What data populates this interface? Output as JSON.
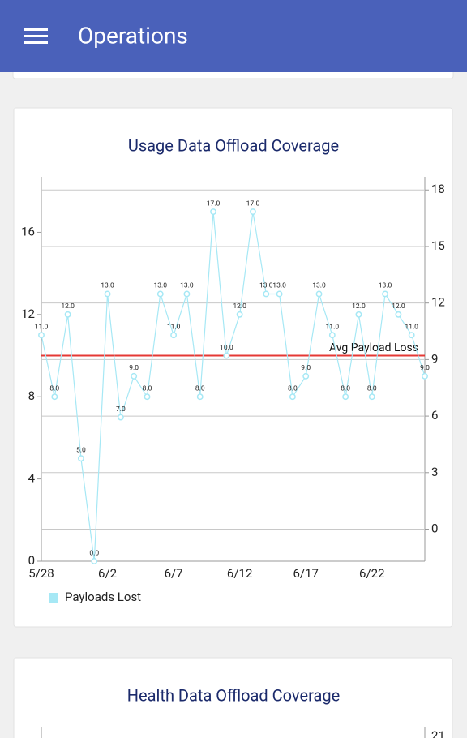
{
  "app_bar": {
    "title": "Operations"
  },
  "chart_data": [
    {
      "type": "line",
      "title": "Usage Data Offload Coverage",
      "categories": [
        "5/28",
        null,
        null,
        null,
        null,
        "6/2",
        null,
        null,
        null,
        null,
        "6/7",
        null,
        null,
        null,
        null,
        "6/12",
        null,
        null,
        null,
        null,
        "6/17",
        null,
        null,
        null,
        null,
        "6/22",
        null,
        null,
        null,
        null
      ],
      "series": [
        {
          "name": "Payloads Lost",
          "color": "#a6e8f5",
          "values": [
            11,
            8,
            12,
            5,
            0,
            13,
            7,
            9,
            8,
            13,
            11,
            13,
            8,
            17,
            10,
            12,
            17,
            13,
            13,
            8,
            9,
            13,
            11,
            8,
            12,
            8,
            13,
            12,
            11,
            9
          ],
          "value_labels": [
            "11.0",
            "8.0",
            "12.0",
            "5.0",
            "0.0",
            "13.0",
            "7.0",
            "9.0",
            "8.0",
            "13.0",
            "11.0",
            "13.0",
            "8.0",
            "17.0",
            "10.0",
            "12.0",
            "17.0",
            "13.0",
            "13.0",
            "8.0",
            "9.0",
            "13.0",
            "11.0",
            "8.0",
            "12.0",
            "8.0",
            "13.0",
            "12.0",
            "11.0",
            "9.0"
          ]
        }
      ],
      "ylim": [
        0,
        18.7
      ],
      "yticks": [
        0,
        4,
        8,
        12,
        16
      ],
      "y2lim": [
        -1.7,
        18.7
      ],
      "y2ticks": [
        0,
        3,
        6,
        9,
        12,
        15,
        18
      ],
      "grid": true,
      "reference_line": {
        "label": "Avg Payload Loss",
        "value": 10,
        "color": "#e53935"
      },
      "legend": "bottom-left"
    },
    {
      "type": "line",
      "title": "Health Data Offload Coverage",
      "y2ticks": [
        21
      ]
    }
  ]
}
